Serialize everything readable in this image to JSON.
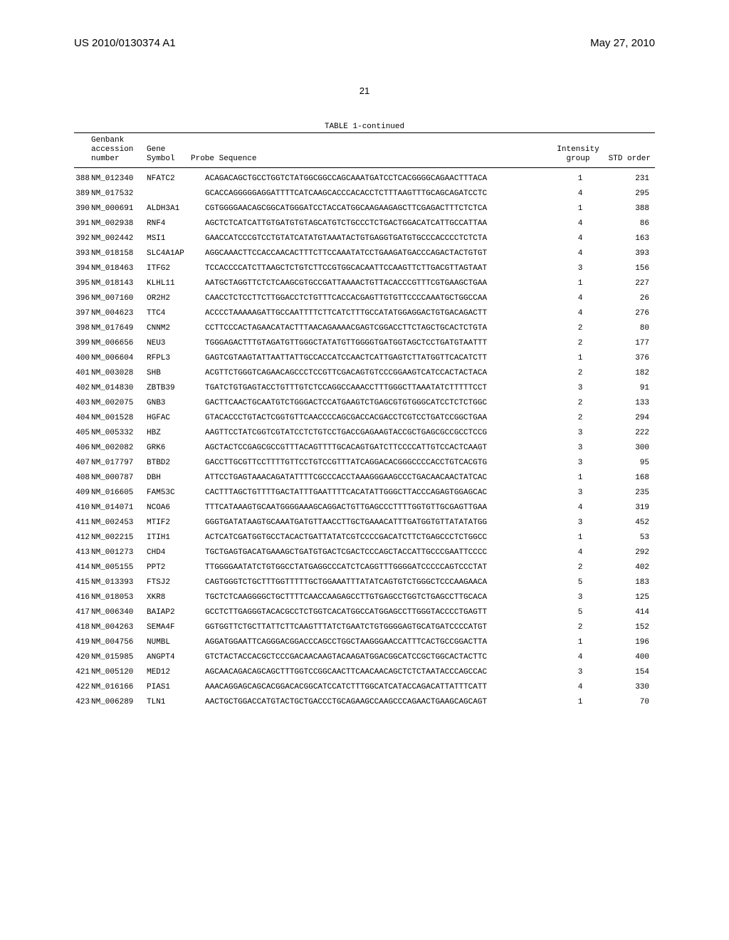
{
  "header": {
    "left": "US 2010/0130374 A1",
    "right": "May 27, 2010",
    "page_number": "21",
    "table_title": "TABLE 1-continued"
  },
  "columns": {
    "c1_l1": "Genbank",
    "c1_l2": "accession",
    "c1_l3": "number",
    "c2_l1": "Gene",
    "c2_l2": "Symbol",
    "c3": "Probe Sequence",
    "c4_l1": "Intensity",
    "c4_l2": "group",
    "c5": "STD order"
  },
  "rows": [
    {
      "idx": "388",
      "acc": "NM_012340",
      "sym": "NFATC2",
      "seq": "ACAGACAGCTGCCTGGTCTATGGCGGCCAGCAAATGATCCTCACGGGGCAGAACTTTACA",
      "grp": "1",
      "ord": "231"
    },
    {
      "idx": "389",
      "acc": "NM_017532",
      "sym": "",
      "seq": "GCACCAGGGGGAGGATTTTCATCAAGCACCCACACCTCTTTAAGTTTGCAGCAGATCCTC",
      "grp": "4",
      "ord": "295"
    },
    {
      "idx": "390",
      "acc": "NM_000691",
      "sym": "ALDH3A1",
      "seq": "CGTGGGGAACAGCGGCATGGGATCCTACCATGGCAAGAAGAGCTTCGAGACTTTCTCTCA",
      "grp": "1",
      "ord": "388"
    },
    {
      "idx": "391",
      "acc": "NM_002938",
      "sym": "RNF4",
      "seq": "AGCTCTCATCATTGTGATGTGTAGCATGTCTGCCCTCTGACTGGACATCATTGCCATTAA",
      "grp": "4",
      "ord": "86"
    },
    {
      "idx": "392",
      "acc": "NM_002442",
      "sym": "MSI1",
      "seq": "GAACCATCCCGTCCTGTATCATATGTAAATACTGTGAGGTGATGTGCCCACCCCTCTCTA",
      "grp": "4",
      "ord": "163"
    },
    {
      "idx": "393",
      "acc": "NM_018158",
      "sym": "SLC4A1AP",
      "seq": "AGGCAAACTTCCACCAACACTTTCTTCCAAATATCCTGAAGATGACCCAGACTACTGTGT",
      "grp": "4",
      "ord": "393"
    },
    {
      "idx": "394",
      "acc": "NM_018463",
      "sym": "ITFG2",
      "seq": "TCCACCCCATCTTAAGCTCTGTCTTCCGTGGCACAATTCCAAGTTCTTGACGTTAGTAAT",
      "grp": "3",
      "ord": "156"
    },
    {
      "idx": "395",
      "acc": "NM_018143",
      "sym": "KLHL11",
      "seq": "AATGCTAGGTTCTCTCAAGCGTGCCGATTAAAACTGTTACACCCGTTTCGTGAAGCTGAA",
      "grp": "1",
      "ord": "227"
    },
    {
      "idx": "396",
      "acc": "NM_007160",
      "sym": "OR2H2",
      "seq": "CAACCTCTCCTTCTTGGACCTCTGTTTCACCACGAGTTGTGTTCCCCAAATGCTGGCCAA",
      "grp": "4",
      "ord": "26"
    },
    {
      "idx": "397",
      "acc": "NM_004623",
      "sym": "TTC4",
      "seq": "ACCCCTAAAAAGATTGCCAATTTTCTTCATCTTTGCCATATGGAGGACTGTGACAGACTT",
      "grp": "4",
      "ord": "276"
    },
    {
      "idx": "398",
      "acc": "NM_017649",
      "sym": "CNNM2",
      "seq": "CCTTCCCACTAGAACATACTTTAACAGAAAACGAGTCGGACCTTCTAGCTGCACTCTGTA",
      "grp": "2",
      "ord": "80"
    },
    {
      "idx": "399",
      "acc": "NM_006656",
      "sym": "NEU3",
      "seq": "TGGGAGACTTTGTAGATGTTGGGCTATATGTTGGGGTGATGGTAGCTCCTGATGTAATTT",
      "grp": "2",
      "ord": "177"
    },
    {
      "idx": "400",
      "acc": "NM_006604",
      "sym": "RFPL3",
      "seq": "GAGTCGTAAGTATTAATTATTGCCACCATCCAACTCATTGAGTCTTATGGTTCACATCTT",
      "grp": "1",
      "ord": "376"
    },
    {
      "idx": "401",
      "acc": "NM_003028",
      "sym": "SHB",
      "seq": "ACGTTCTGGGTCAGAACAGCCCTCCGTTCGACAGTGTCCCGGAAGTCATCCACTACTACA",
      "grp": "2",
      "ord": "182"
    },
    {
      "idx": "402",
      "acc": "NM_014830",
      "sym": "ZBTB39",
      "seq": "TGATCTGTGAGTACCTGTTTGTCTCCAGGCCAAACCTTTGGGCTTAAATATCTTTTTCCT",
      "grp": "3",
      "ord": "91"
    },
    {
      "idx": "403",
      "acc": "NM_002075",
      "sym": "GNB3",
      "seq": "GACTTCAACTGCAATGTCTGGGACTCCATGAAGTCTGAGCGTGTGGGCATCCTCTCTGGC",
      "grp": "2",
      "ord": "133"
    },
    {
      "idx": "404",
      "acc": "NM_001528",
      "sym": "HGFAC",
      "seq": "GTACACCCTGTACTCGGTGTTCAACCCCAGCGACCACGACCTCGTCCTGATCCGGCTGAA",
      "grp": "2",
      "ord": "294"
    },
    {
      "idx": "405",
      "acc": "NM_005332",
      "sym": "HBZ",
      "seq": "AAGTTCCTATCGGTCGTATCCTCTGTCCTGACCGAGAAGTACCGCTGAGCGCCGCCTCCG",
      "grp": "3",
      "ord": "222"
    },
    {
      "idx": "406",
      "acc": "NM_002082",
      "sym": "GRK6",
      "seq": "AGCTACTCCGAGCGCCGTTTACAGTTTTGCACAGTGATCTTCCCCATTGTCCACTCAAGT",
      "grp": "3",
      "ord": "300"
    },
    {
      "idx": "407",
      "acc": "NM_017797",
      "sym": "BTBD2",
      "seq": "GACCTTGCGTTCCTTTTGTTCCTGTCCGTTTATCAGGACACGGGCCCCACCTGTCACGTG",
      "grp": "3",
      "ord": "95"
    },
    {
      "idx": "408",
      "acc": "NM_000787",
      "sym": "DBH",
      "seq": "ATTCCTGAGTAAACAGATATTTTCGCCCACCTAAAGGGAAGCCCTGACAACAACTATCAC",
      "grp": "1",
      "ord": "168"
    },
    {
      "idx": "409",
      "acc": "NM_016605",
      "sym": "FAM53C",
      "seq": "CACTTTAGCTGTTTTGACTATTTGAATTTTCACATATTGGGCTTACCCAGAGTGGAGCAC",
      "grp": "3",
      "ord": "235"
    },
    {
      "idx": "410",
      "acc": "NM_014071",
      "sym": "NCOA6",
      "seq": "TTTCATAAAGTGCAATGGGGAAAGCAGGACTGTTGAGCCCTTTTGGTGTTGCGAGTTGAA",
      "grp": "4",
      "ord": "319"
    },
    {
      "idx": "411",
      "acc": "NM_002453",
      "sym": "MTIF2",
      "seq": "GGGTGATATAAGTGCAAATGATGTTAACCTTGCTGAAACATTTGATGGTGTTATATATGG",
      "grp": "3",
      "ord": "452"
    },
    {
      "idx": "412",
      "acc": "NM_002215",
      "sym": "ITIH1",
      "seq": "ACTCATCGATGGTGCCTACACTGATTATATCGTCCCCGACATCTTCTGAGCCCTCTGGCC",
      "grp": "1",
      "ord": "53"
    },
    {
      "idx": "413",
      "acc": "NM_001273",
      "sym": "CHD4",
      "seq": "TGCTGAGTGACATGAAAGCTGATGTGACTCGACTCCCAGCTACCATTGCCCGAATTCCCC",
      "grp": "4",
      "ord": "292"
    },
    {
      "idx": "414",
      "acc": "NM_005155",
      "sym": "PPT2",
      "seq": "TTGGGGAATATCTGTGGCCTATGAGGCCCATCTCAGGTTTGGGGATCCCCCAGTCCCTAT",
      "grp": "2",
      "ord": "402"
    },
    {
      "idx": "415",
      "acc": "NM_013393",
      "sym": "FTSJ2",
      "seq": "CAGTGGGTCTGCTTTGGTTTTTGCTGGAAATTTATATCAGTGTCTGGGCTCCCAAGAACA",
      "grp": "5",
      "ord": "183"
    },
    {
      "idx": "416",
      "acc": "NM_018053",
      "sym": "XKR8",
      "seq": "TGCTCTCAAGGGGCTGCTTTTCAACCAAGAGCCTTGTGAGCCTGGTCTGAGCCTTGCACA",
      "grp": "3",
      "ord": "125"
    },
    {
      "idx": "417",
      "acc": "NM_006340",
      "sym": "BAIAP2",
      "seq": "GCCTCTTGAGGGTACACGCCTCTGGTCACATGGCCATGGAGCCTTGGGTACCCCTGAGTT",
      "grp": "5",
      "ord": "414"
    },
    {
      "idx": "418",
      "acc": "NM_004263",
      "sym": "SEMA4F",
      "seq": "GGTGGTTCTGCTTATTCTTCAAGTTTATCTGAATCTGTGGGGAGTGCATGATCCCCATGT",
      "grp": "2",
      "ord": "152"
    },
    {
      "idx": "419",
      "acc": "NM_004756",
      "sym": "NUMBL",
      "seq": "AGGATGGAATTCAGGGACGGACCCAGCCTGGCTAAGGGAACCATTTCACTGCCGGACTTA",
      "grp": "1",
      "ord": "196"
    },
    {
      "idx": "420",
      "acc": "NM_015985",
      "sym": "ANGPT4",
      "seq": "GTCTACTACCACGCTCCCGACAACAAGTACAAGATGGACGGCATCCGCTGGCACTACTTC",
      "grp": "4",
      "ord": "400"
    },
    {
      "idx": "421",
      "acc": "NM_005120",
      "sym": "MED12",
      "seq": "AGCAACAGACAGCAGCTTTGGTCCGGCAACTTCAACAACAGCTCTCTAATACCCAGCCAC",
      "grp": "3",
      "ord": "154"
    },
    {
      "idx": "422",
      "acc": "NM_016166",
      "sym": "PIAS1",
      "seq": "AAACAGGAGCAGCACGGACACGGCATCCATCTTTGGCATCATACCAGACATTATTTCATT",
      "grp": "4",
      "ord": "330"
    },
    {
      "idx": "423",
      "acc": "NM_006289",
      "sym": "TLN1",
      "seq": "AACTGCTGGACCATGTACTGCTGACCCTGCAGAAGCCAAGCCCAGAACTGAAGCAGCAGT",
      "grp": "1",
      "ord": "70"
    }
  ]
}
